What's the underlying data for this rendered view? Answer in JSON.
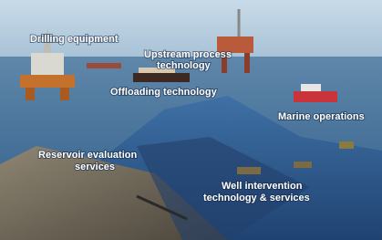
{
  "labels": [
    {
      "lines": [
        "Drilling equipment"
      ]
    },
    {
      "lines": [
        "Upstream process",
        "technology"
      ]
    },
    {
      "lines": [
        "Offloading technology"
      ]
    },
    {
      "lines": [
        "Marine operations"
      ]
    },
    {
      "lines": [
        "Reservoir evaluation",
        "services"
      ]
    },
    {
      "lines": [
        "Well intervention",
        "technology & services"
      ]
    }
  ]
}
